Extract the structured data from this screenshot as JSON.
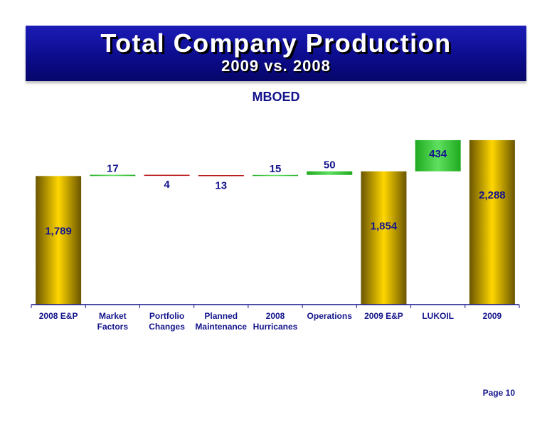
{
  "header": {
    "title": "Total Company Production",
    "subtitle": "2009 vs. 2008"
  },
  "chart_data": {
    "type": "bar",
    "subtype": "waterfall",
    "title": "Total Company Production",
    "subtitle": "2009 vs. 2008",
    "ylabel": "MBOED",
    "categories": [
      "2008 E&P",
      "Market Factors",
      "Portfolio Changes",
      "Planned Maintenance",
      "2008 Hurricanes",
      "Operations",
      "2009 E&P",
      "LUKOIL",
      "2009"
    ],
    "values": [
      1789,
      17,
      -4,
      -13,
      15,
      50,
      1854,
      434,
      2288
    ],
    "value_labels": [
      "1,789",
      "17",
      "4",
      "13",
      "15",
      "50",
      "1,854",
      "434",
      "2,288"
    ],
    "kinds": [
      "total",
      "increase",
      "decrease",
      "decrease",
      "increase",
      "increase",
      "total",
      "increase",
      "total"
    ],
    "colors": {
      "total_light": "#ffd700",
      "total_dark": "#6a5500",
      "increase": "#1faa1f",
      "increase_light": "#5fe05f",
      "decrease": "#b81212",
      "value_label": "#14148c",
      "axis": "#14148c"
    },
    "grid": false,
    "legend": "none"
  },
  "footer": {
    "page": "Page 10"
  }
}
